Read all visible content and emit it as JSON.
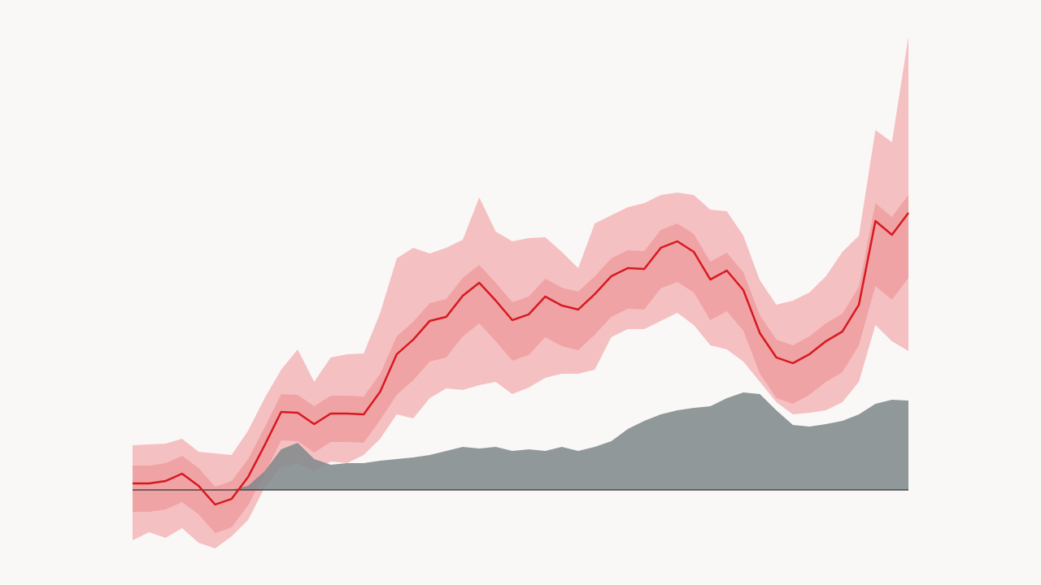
{
  "chart_data": {
    "type": "line",
    "ylim": [
      -8,
      56
    ],
    "background": "#f9f8f6",
    "bands": [
      {
        "color": "#f5c0c1",
        "upper": [
          5.5,
          5.6,
          5.7,
          6.3,
          4.7,
          4.5,
          4.3,
          7.3,
          11.3,
          14.8,
          17.3,
          13.3,
          16.3,
          16.7,
          16.8,
          21.8,
          28.5,
          29.8,
          29.1,
          29.8,
          30.8,
          36.0,
          31.8,
          30.6,
          31.0,
          31.1,
          29.3,
          27.3,
          32.8,
          33.8,
          34.8,
          35.3,
          36.3,
          36.6,
          36.3,
          34.5,
          34.3,
          31.3,
          25.8,
          22.8,
          23.3,
          24.3,
          26.3,
          29.3,
          31.3,
          44.3,
          42.8,
          55.8
        ],
        "lower": [
          -6.2,
          -5.2,
          -5.9,
          -4.7,
          -6.5,
          -7.2,
          -5.7,
          -3.7,
          0.3,
          2.8,
          3.3,
          2.3,
          3.5,
          3.3,
          4.3,
          6.3,
          9.3,
          8.8,
          11.3,
          12.5,
          12.3,
          12.9,
          13.3,
          11.8,
          12.6,
          13.8,
          14.3,
          14.3,
          14.8,
          18.8,
          19.8,
          19.8,
          20.8,
          21.8,
          20.3,
          17.8,
          17.3,
          15.8,
          13.3,
          10.8,
          9.3,
          9.5,
          9.8,
          10.8,
          13.3,
          20.3,
          18.3,
          17.1
        ]
      },
      {
        "color": "#f0a3a5",
        "upper": [
          3.0,
          3.0,
          3.3,
          4.2,
          2.7,
          0.4,
          1.1,
          3.8,
          7.7,
          11.8,
          11.7,
          10.3,
          11.6,
          11.6,
          11.5,
          14.3,
          18.9,
          20.7,
          23.0,
          23.5,
          26.1,
          27.7,
          25.5,
          23.1,
          23.8,
          26.0,
          24.9,
          24.4,
          26.3,
          28.5,
          29.5,
          29.4,
          32.0,
          32.8,
          31.5,
          28.1,
          29.2,
          26.8,
          21.5,
          18.5,
          17.8,
          18.9,
          20.5,
          21.7,
          25.0,
          35.3,
          33.6,
          36.3
        ],
        "lower": [
          -2.7,
          -2.7,
          -2.4,
          -1.5,
          -3.0,
          -5.3,
          -4.6,
          -1.9,
          2.0,
          6.1,
          6.0,
          4.6,
          5.9,
          5.9,
          5.8,
          8.6,
          11.7,
          13.5,
          15.8,
          16.3,
          18.9,
          20.5,
          18.3,
          15.9,
          16.6,
          18.8,
          17.7,
          17.2,
          19.1,
          21.3,
          22.3,
          22.2,
          24.8,
          25.6,
          24.3,
          20.9,
          22.0,
          19.6,
          14.3,
          11.3,
          10.6,
          11.7,
          13.3,
          14.5,
          17.8,
          25.1,
          23.4,
          26.1
        ]
      }
    ],
    "area": {
      "color": "#7f8789",
      "values": [
        0,
        0,
        0,
        0,
        0,
        0,
        0,
        0.5,
        2.3,
        5.0,
        5.8,
        3.8,
        3.1,
        3.3,
        3.3,
        3.6,
        3.8,
        4.0,
        4.3,
        4.8,
        5.3,
        5.1,
        5.3,
        4.8,
        5.0,
        4.8,
        5.3,
        4.8,
        5.3,
        6.0,
        7.5,
        8.5,
        9.3,
        9.8,
        10.1,
        10.3,
        11.3,
        12.0,
        11.8,
        9.8,
        8.0,
        7.8,
        8.1,
        8.5,
        9.3,
        10.6,
        11.1,
        11.0
      ]
    },
    "series": [
      {
        "color": "#d7191f",
        "values": [
          0.8,
          0.8,
          1.1,
          2.0,
          0.5,
          -1.8,
          -1.1,
          1.6,
          5.5,
          9.6,
          9.5,
          8.1,
          9.4,
          9.4,
          9.3,
          12.1,
          16.7,
          18.5,
          20.8,
          21.3,
          23.9,
          25.5,
          23.3,
          20.9,
          21.6,
          23.8,
          22.7,
          22.2,
          24.1,
          26.3,
          27.3,
          27.2,
          29.8,
          30.6,
          29.3,
          25.9,
          27.0,
          24.6,
          19.3,
          16.3,
          15.6,
          16.7,
          18.3,
          19.5,
          22.8,
          33.1,
          31.4,
          34.1
        ]
      }
    ]
  }
}
